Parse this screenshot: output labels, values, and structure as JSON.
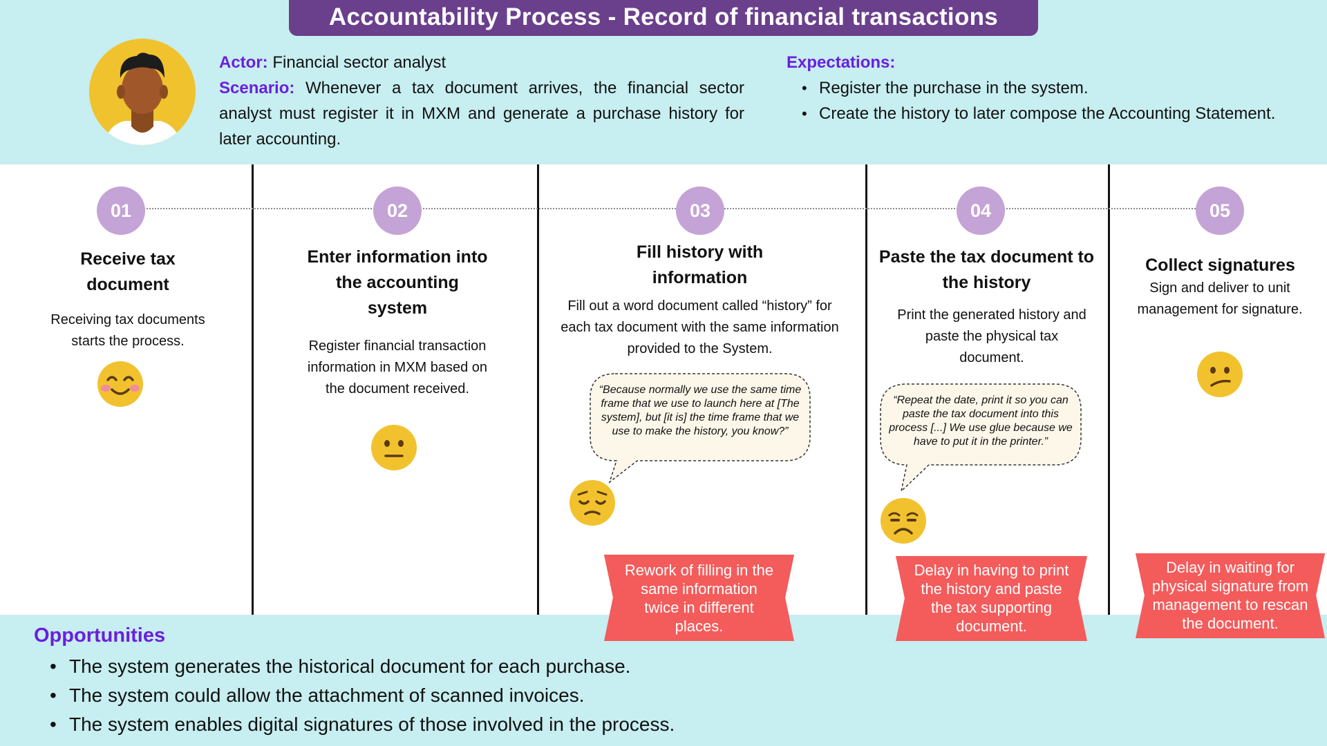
{
  "header": {
    "title": "Accountability Process - Record of financial transactions",
    "actor_label": "Actor:",
    "actor_value": "Financial sector analyst",
    "scenario_label": "Scenario:",
    "scenario_text": "Whenever a tax document arrives, the financial sector analyst must register it in MXM and generate a purchase history for later accounting.",
    "expectations_label": "Expectations:",
    "expectations": [
      "Register the purchase in the system.",
      "Create the history to later compose the Accounting Statement."
    ]
  },
  "steps": [
    {
      "number": "01",
      "title": "Receive tax document",
      "description": "Receiving tax documents starts the process.",
      "emotion": "happy-face-icon"
    },
    {
      "number": "02",
      "title": "Enter information into the accounting system",
      "description": "Register financial transaction information in MXM based on the document received.",
      "emotion": "neutral-face-icon"
    },
    {
      "number": "03",
      "title": "Fill history with information",
      "description": "Fill out a word document called “history” for each tax document with the same information provided to the System.",
      "quote": "“Because normally we use the same time frame that we use to launch here at [The system], but [it is] the time frame that we use to make the history, you know?”",
      "emotion": "pensive-face-icon",
      "pain_point": "Rework of filling in the same information twice in different places."
    },
    {
      "number": "04",
      "title": "Paste the tax document to the history",
      "description": "Print the generated history and paste the physical tax document.",
      "quote": "“Repeat the date, print it so you can paste the tax document into this process [...] We use glue because we have to put it in the printer.”",
      "emotion": "unamused-face-icon",
      "pain_point": "Delay in having to print the history and paste the tax supporting document."
    },
    {
      "number": "05",
      "title": "Collect signatures",
      "description": "Sign and deliver to unit management for signature.",
      "emotion": "confused-face-icon",
      "pain_point": "Delay in waiting for physical signature from management to rescan the document."
    }
  ],
  "opportunities": {
    "title": "Opportunities",
    "items": [
      "The system generates the historical document for each purchase.",
      "The system could allow the attachment of scanned invoices.",
      "The system enables digital signatures of those involved in the process."
    ]
  },
  "colors": {
    "band": "#c7eef0",
    "title_bg": "#6a3f8c",
    "label": "#6a1fe0",
    "step_circle": "#c4a3d6",
    "pain": "#f45b5b",
    "emoji": "#f2c22e"
  }
}
